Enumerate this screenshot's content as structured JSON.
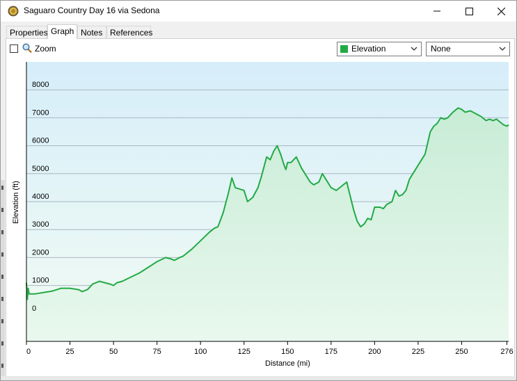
{
  "window": {
    "title": "Saguaro Country Day 16 via Sedona",
    "controls": {
      "minimize": "minimize-icon",
      "maximize": "maximize-icon",
      "close": "close-icon"
    }
  },
  "tabs": [
    {
      "label": "Properties",
      "active": false
    },
    {
      "label": "Graph",
      "active": true
    },
    {
      "label": "Notes",
      "active": false
    },
    {
      "label": "References",
      "active": false
    }
  ],
  "toolbar": {
    "zoom_label": "Zoom",
    "zoom_checked": false,
    "series_select": {
      "value": "Elevation",
      "swatch_color": "#22aa44"
    },
    "second_select": {
      "value": "None"
    }
  },
  "chart_data": {
    "type": "area",
    "xlabel": "Distance  (mi)",
    "ylabel": "Elevation (ft)",
    "xlim": [
      0,
      277
    ],
    "ylim": [
      -1000,
      9000
    ],
    "x_ticks": [
      "0",
      "25",
      "50",
      "75",
      "100",
      "125",
      "150",
      "175",
      "200",
      "225",
      "250",
      "276"
    ],
    "x_tick_values": [
      0,
      25,
      50,
      75,
      100,
      125,
      150,
      175,
      200,
      225,
      250,
      276
    ],
    "y_ticks": [
      "0",
      "1000",
      "2000",
      "3000",
      "4000",
      "5000",
      "6000",
      "7000",
      "8000"
    ],
    "y_tick_values": [
      0,
      1000,
      2000,
      3000,
      4000,
      5000,
      6000,
      7000,
      8000
    ],
    "grid": true,
    "line_color": "#22aa44",
    "series": [
      {
        "name": "Elevation",
        "x": [
          0,
          0.5,
          1,
          1.5,
          2,
          5,
          10,
          15,
          20,
          25,
          30,
          32,
          35,
          38,
          40,
          42,
          45,
          48,
          50,
          52,
          55,
          60,
          65,
          70,
          75,
          80,
          83,
          85,
          88,
          90,
          95,
          100,
          105,
          108,
          110,
          113,
          116,
          118,
          120,
          125,
          127,
          130,
          133,
          135,
          138,
          140,
          142,
          144,
          146,
          148,
          149,
          150,
          152,
          155,
          158,
          160,
          163,
          165,
          168,
          170,
          172,
          175,
          178,
          180,
          184,
          186,
          188,
          190,
          192,
          194,
          196,
          198,
          200,
          203,
          205,
          207,
          210,
          212,
          214,
          216,
          218,
          220,
          223,
          226,
          229,
          232,
          234,
          236,
          238,
          240,
          242,
          245,
          248,
          250,
          252,
          255,
          258,
          261,
          264,
          266,
          268,
          270,
          272,
          274,
          276,
          277
        ],
        "values": [
          1100,
          500,
          900,
          700,
          700,
          700,
          750,
          800,
          900,
          900,
          850,
          780,
          850,
          1050,
          1100,
          1150,
          1100,
          1050,
          1000,
          1100,
          1150,
          1300,
          1450,
          1650,
          1850,
          2000,
          1950,
          1900,
          2000,
          2050,
          2300,
          2600,
          2900,
          3050,
          3100,
          3600,
          4300,
          4850,
          4500,
          4400,
          4000,
          4150,
          4500,
          4900,
          5600,
          5500,
          5800,
          6000,
          5700,
          5300,
          5150,
          5400,
          5400,
          5600,
          5200,
          5000,
          4700,
          4600,
          4700,
          5000,
          4800,
          4500,
          4400,
          4500,
          4700,
          4200,
          3700,
          3300,
          3100,
          3200,
          3400,
          3350,
          3800,
          3800,
          3750,
          3900,
          4000,
          4400,
          4200,
          4250,
          4400,
          4800,
          5100,
          5400,
          5700,
          6500,
          6700,
          6800,
          7000,
          6950,
          7000,
          7200,
          7350,
          7300,
          7200,
          7250,
          7150,
          7050,
          6900,
          6950,
          6900,
          6950,
          6850,
          6750,
          6700,
          6750
        ]
      }
    ]
  }
}
